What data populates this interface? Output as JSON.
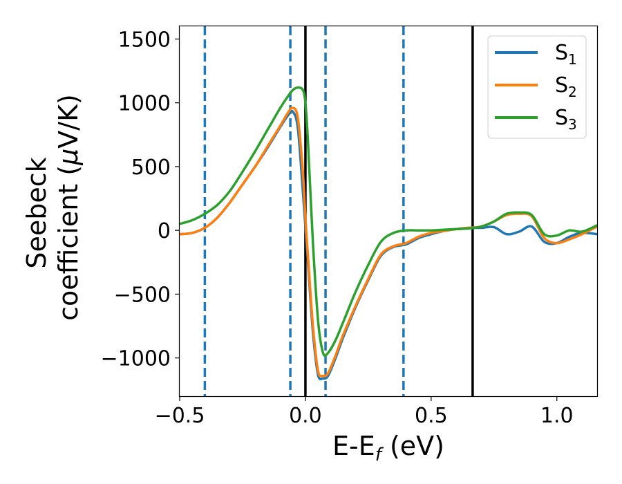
{
  "chart_data": {
    "type": "line",
    "title": "",
    "xlabel": "E-E",
    "xlabel_sub": "f",
    "xlabel_unit": " (eV)",
    "ylabel_line1": "Seebeck",
    "ylabel_line2": "coefficient  (",
    "ylabel_mu": "μ",
    "ylabel_unit": "V/K)",
    "xlim": [
      -0.5,
      1.16
    ],
    "ylim": [
      -1300,
      1600
    ],
    "xticks": [
      -0.5,
      0.0,
      0.5,
      1.0
    ],
    "xtick_labels": [
      "−0.5",
      "0.0",
      "0.5",
      "1.0"
    ],
    "yticks": [
      -1000,
      -500,
      0,
      500,
      1000,
      1500
    ],
    "ytick_labels": [
      "−1000",
      "−500",
      "0",
      "500",
      "1000",
      "1500"
    ],
    "legend_position": "top-right",
    "vlines_dashed": [
      -0.4,
      -0.06,
      0.08,
      0.39
    ],
    "vlines_solid": [
      0.0,
      0.665
    ],
    "colors": {
      "s1": "#1f77b4",
      "s2": "#ff7f0e",
      "s3": "#2ca02c",
      "vline_dashed": "#1f77b4",
      "vline_solid": "#000000"
    },
    "series": [
      {
        "name": "S",
        "sub": "1",
        "color_key": "s1",
        "x": [
          -0.5,
          -0.45,
          -0.4,
          -0.35,
          -0.3,
          -0.25,
          -0.2,
          -0.15,
          -0.1,
          -0.07,
          -0.05,
          -0.03,
          -0.01,
          0.0,
          0.01,
          0.03,
          0.05,
          0.07,
          0.09,
          0.12,
          0.15,
          0.2,
          0.25,
          0.3,
          0.35,
          0.4,
          0.45,
          0.5,
          0.55,
          0.6,
          0.65,
          0.7,
          0.75,
          0.8,
          0.85,
          0.9,
          0.95,
          1.0,
          1.05,
          1.1,
          1.16
        ],
        "y": [
          -30,
          -20,
          20,
          100,
          220,
          360,
          500,
          650,
          810,
          900,
          930,
          800,
          300,
          30,
          -250,
          -800,
          -1130,
          -1160,
          -1140,
          -1000,
          -840,
          -600,
          -390,
          -200,
          -130,
          -110,
          -60,
          -30,
          -5,
          10,
          20,
          20,
          25,
          -30,
          -10,
          30,
          -90,
          -100,
          -50,
          -20,
          -30
        ]
      },
      {
        "name": "S",
        "sub": "2",
        "color_key": "s2",
        "x": [
          -0.5,
          -0.45,
          -0.4,
          -0.35,
          -0.3,
          -0.25,
          -0.2,
          -0.15,
          -0.1,
          -0.07,
          -0.05,
          -0.03,
          -0.01,
          0.0,
          0.01,
          0.03,
          0.05,
          0.07,
          0.09,
          0.12,
          0.15,
          0.2,
          0.25,
          0.3,
          0.35,
          0.4,
          0.45,
          0.5,
          0.55,
          0.6,
          0.65,
          0.7,
          0.75,
          0.8,
          0.85,
          0.9,
          0.95,
          1.0,
          1.05,
          1.1,
          1.16
        ],
        "y": [
          -30,
          -20,
          20,
          100,
          220,
          360,
          500,
          660,
          820,
          920,
          960,
          880,
          450,
          100,
          -200,
          -750,
          -1100,
          -1140,
          -1120,
          -980,
          -820,
          -590,
          -380,
          -190,
          -125,
          -100,
          -50,
          -20,
          -5,
          10,
          20,
          30,
          70,
          120,
          130,
          110,
          -60,
          -100,
          -70,
          -30,
          30
        ]
      },
      {
        "name": "S",
        "sub": "3",
        "color_key": "s3",
        "x": [
          -0.5,
          -0.45,
          -0.4,
          -0.35,
          -0.3,
          -0.25,
          -0.2,
          -0.15,
          -0.1,
          -0.07,
          -0.05,
          -0.03,
          -0.01,
          0.0,
          0.01,
          0.03,
          0.05,
          0.07,
          0.09,
          0.12,
          0.15,
          0.2,
          0.25,
          0.3,
          0.35,
          0.4,
          0.45,
          0.5,
          0.55,
          0.6,
          0.65,
          0.7,
          0.75,
          0.8,
          0.85,
          0.9,
          0.95,
          1.0,
          1.05,
          1.1,
          1.16
        ],
        "y": [
          50,
          80,
          130,
          200,
          310,
          460,
          620,
          790,
          960,
          1050,
          1100,
          1120,
          1100,
          1000,
          700,
          -100,
          -700,
          -960,
          -960,
          -860,
          -720,
          -480,
          -270,
          -90,
          -20,
          0,
          0,
          0,
          5,
          10,
          15,
          30,
          70,
          130,
          140,
          120,
          -30,
          -40,
          0,
          -10,
          40
        ]
      }
    ]
  }
}
